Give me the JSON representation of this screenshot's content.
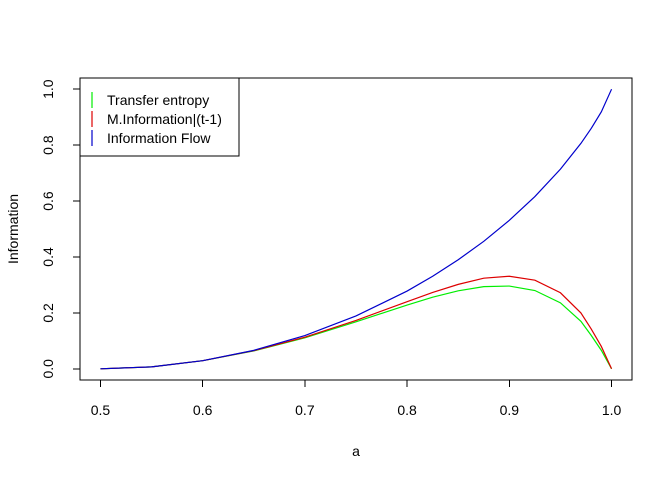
{
  "chart_data": {
    "type": "line",
    "title": "",
    "xlabel": "a",
    "ylabel": "Information",
    "xlim": [
      0.48,
      1.02
    ],
    "ylim": [
      -0.04,
      1.04
    ],
    "xticks": [
      0.5,
      0.6,
      0.7,
      0.8,
      0.9,
      1.0
    ],
    "xtick_labels": [
      "0.5",
      "0.6",
      "0.7",
      "0.8",
      "0.9",
      "1.0"
    ],
    "yticks": [
      0.0,
      0.2,
      0.4,
      0.6,
      0.8,
      1.0
    ],
    "ytick_labels": [
      "0.0",
      "0.2",
      "0.4",
      "0.6",
      "0.8",
      "1.0"
    ],
    "grid": false,
    "legend_position": "top-left",
    "series": [
      {
        "name": "Transfer entropy",
        "color": "#00ee00",
        "x": [
          0.5,
          0.55,
          0.6,
          0.65,
          0.7,
          0.75,
          0.8,
          0.825,
          0.85,
          0.875,
          0.9,
          0.925,
          0.95,
          0.97,
          0.98,
          0.99,
          1.0
        ],
        "y": [
          0.0,
          0.007,
          0.029,
          0.064,
          0.111,
          0.168,
          0.228,
          0.256,
          0.279,
          0.294,
          0.296,
          0.28,
          0.236,
          0.17,
          0.12,
          0.066,
          0.0
        ]
      },
      {
        "name": "M.Information|(t-1)",
        "color": "#dd0000",
        "x": [
          0.5,
          0.55,
          0.6,
          0.65,
          0.7,
          0.75,
          0.8,
          0.825,
          0.85,
          0.875,
          0.9,
          0.925,
          0.95,
          0.97,
          0.98,
          0.99,
          1.0
        ],
        "y": [
          0.0,
          0.007,
          0.029,
          0.065,
          0.113,
          0.173,
          0.24,
          0.273,
          0.302,
          0.324,
          0.331,
          0.317,
          0.272,
          0.2,
          0.143,
          0.08,
          0.0
        ]
      },
      {
        "name": "Information Flow",
        "color": "#0000cc",
        "x": [
          0.5,
          0.55,
          0.6,
          0.65,
          0.7,
          0.75,
          0.8,
          0.825,
          0.85,
          0.875,
          0.9,
          0.925,
          0.95,
          0.97,
          0.98,
          0.99,
          1.0
        ],
        "y": [
          0.0,
          0.007,
          0.029,
          0.066,
          0.119,
          0.189,
          0.278,
          0.331,
          0.39,
          0.456,
          0.531,
          0.616,
          0.714,
          0.806,
          0.859,
          0.919,
          1.0
        ]
      }
    ]
  }
}
